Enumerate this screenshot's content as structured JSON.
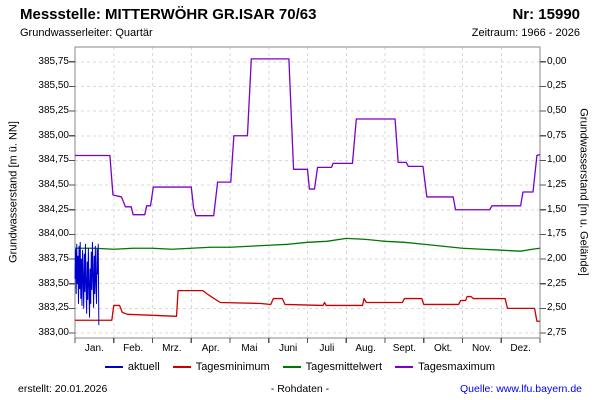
{
  "header": {
    "title": "Messstelle: MITTERWÖHR GR.ISAR 70/63",
    "number": "Nr: 15990",
    "aquifer": "Grundwasserleiter: Quartär",
    "period": "Zeitraum: 1966 - 2026"
  },
  "footer": {
    "created": "erstellt:  20.01.2026",
    "center": "- Rohdaten -",
    "source": "Quelle: www.lfu.bayern.de",
    "source_color": "#0000ee"
  },
  "chart_data": {
    "type": "line",
    "title": "",
    "xlabel": "",
    "ylabel_left": "Grundwasserstand [m ü. NN]",
    "ylabel_right": "Grundwasserstand [m u. Gelände]",
    "x_categories": [
      "Jan.",
      "Feb.",
      "Mrz.",
      "Apr.",
      "Mai",
      "Juni",
      "Juli",
      "Aug.",
      "Sept.",
      "Okt.",
      "Nov.",
      "Dez."
    ],
    "x_unit": "month_of_year",
    "x_range_months": [
      0,
      12
    ],
    "ylim_left": [
      382.95,
      385.9
    ],
    "ytick_values": [
      385.75,
      385.5,
      385.25,
      385.0,
      384.75,
      384.5,
      384.25,
      384.0,
      383.75,
      383.5,
      383.25,
      383.0
    ],
    "ytick_labels_left": [
      "385,75",
      "385,50",
      "385,25",
      "385,00",
      "384,75",
      "384,50",
      "384,25",
      "384,00",
      "383,75",
      "383,50",
      "383,25",
      "383,00"
    ],
    "ytick_labels_right": [
      "0,00",
      "0,25",
      "0,50",
      "0,75",
      "1,00",
      "1,25",
      "1,50",
      "1,75",
      "2,00",
      "2,25",
      "2,50",
      "2,75"
    ],
    "ground_elevation_m_nn": 385.75,
    "right_axis_relation": "right_value = 385.75 - left_value",
    "grid": true,
    "grid_color": "#d9d9d9",
    "axis_color": "#878787",
    "legend_position": "bottom",
    "series": [
      {
        "name": "aktuell",
        "color": "#0000cc",
        "points": [
          [
            0.0,
            383.55
          ],
          [
            0.015,
            383.85
          ],
          [
            0.03,
            383.4
          ],
          [
            0.045,
            383.9
          ],
          [
            0.06,
            383.5
          ],
          [
            0.075,
            383.78
          ],
          [
            0.09,
            383.3
          ],
          [
            0.105,
            383.88
          ],
          [
            0.12,
            383.45
          ],
          [
            0.135,
            383.92
          ],
          [
            0.15,
            383.35
          ],
          [
            0.165,
            383.75
          ],
          [
            0.18,
            383.28
          ],
          [
            0.195,
            383.84
          ],
          [
            0.21,
            383.55
          ],
          [
            0.225,
            383.25
          ],
          [
            0.24,
            383.8
          ],
          [
            0.255,
            383.42
          ],
          [
            0.27,
            383.9
          ],
          [
            0.285,
            383.5
          ],
          [
            0.3,
            383.2
          ],
          [
            0.315,
            383.72
          ],
          [
            0.33,
            383.34
          ],
          [
            0.345,
            383.86
          ],
          [
            0.36,
            383.48
          ],
          [
            0.375,
            383.16
          ],
          [
            0.39,
            383.65
          ],
          [
            0.405,
            383.3
          ],
          [
            0.42,
            383.82
          ],
          [
            0.435,
            383.44
          ],
          [
            0.45,
            383.92
          ],
          [
            0.465,
            383.58
          ],
          [
            0.48,
            383.26
          ],
          [
            0.495,
            383.78
          ],
          [
            0.51,
            383.4
          ],
          [
            0.525,
            383.88
          ],
          [
            0.54,
            383.52
          ],
          [
            0.555,
            383.3
          ],
          [
            0.57,
            383.85
          ],
          [
            0.585,
            383.6
          ],
          [
            0.6,
            383.9
          ],
          [
            0.615,
            383.08
          ]
        ]
      },
      {
        "name": "Tagesminimum",
        "color": "#cc0000",
        "points": [
          [
            0.0,
            383.13
          ],
          [
            0.95,
            383.13
          ],
          [
            1.0,
            383.28
          ],
          [
            1.15,
            383.28
          ],
          [
            1.22,
            383.21
          ],
          [
            1.35,
            383.19
          ],
          [
            2.0,
            383.18
          ],
          [
            2.62,
            383.17
          ],
          [
            2.66,
            383.43
          ],
          [
            3.3,
            383.43
          ],
          [
            3.4,
            383.4
          ],
          [
            3.55,
            383.36
          ],
          [
            3.75,
            383.31
          ],
          [
            4.8,
            383.3
          ],
          [
            5.05,
            383.29
          ],
          [
            5.12,
            383.35
          ],
          [
            5.35,
            383.35
          ],
          [
            5.42,
            383.29
          ],
          [
            6.4,
            383.28
          ],
          [
            6.44,
            383.31
          ],
          [
            6.48,
            383.28
          ],
          [
            7.42,
            383.28
          ],
          [
            7.46,
            383.35
          ],
          [
            7.52,
            383.31
          ],
          [
            8.45,
            383.31
          ],
          [
            8.5,
            383.35
          ],
          [
            8.95,
            383.35
          ],
          [
            9.0,
            383.29
          ],
          [
            9.9,
            383.29
          ],
          [
            9.95,
            383.33
          ],
          [
            10.08,
            383.33
          ],
          [
            10.12,
            383.37
          ],
          [
            10.22,
            383.37
          ],
          [
            10.28,
            383.35
          ],
          [
            11.1,
            383.35
          ],
          [
            11.16,
            383.25
          ],
          [
            11.86,
            383.25
          ],
          [
            11.92,
            383.12
          ],
          [
            12.0,
            383.12
          ]
        ]
      },
      {
        "name": "Tagesmittelwert",
        "color": "#007700",
        "points": [
          [
            0.0,
            383.86
          ],
          [
            0.5,
            383.86
          ],
          [
            1.0,
            383.85
          ],
          [
            1.5,
            383.86
          ],
          [
            2.0,
            383.86
          ],
          [
            2.5,
            383.85
          ],
          [
            3.0,
            383.86
          ],
          [
            3.5,
            383.87
          ],
          [
            4.0,
            383.87
          ],
          [
            4.5,
            383.88
          ],
          [
            5.0,
            383.89
          ],
          [
            5.5,
            383.9
          ],
          [
            6.0,
            383.92
          ],
          [
            6.5,
            383.93
          ],
          [
            7.0,
            383.96
          ],
          [
            7.5,
            383.95
          ],
          [
            8.0,
            383.93
          ],
          [
            8.5,
            383.92
          ],
          [
            9.0,
            383.9
          ],
          [
            9.5,
            383.88
          ],
          [
            10.0,
            383.86
          ],
          [
            10.5,
            383.85
          ],
          [
            11.0,
            383.84
          ],
          [
            11.5,
            383.83
          ],
          [
            11.8,
            383.85
          ],
          [
            12.0,
            383.86
          ]
        ]
      },
      {
        "name": "Tagesmaximum",
        "color": "#7a00cc",
        "points": [
          [
            0.0,
            384.8
          ],
          [
            0.9,
            384.8
          ],
          [
            0.98,
            384.4
          ],
          [
            1.2,
            384.38
          ],
          [
            1.3,
            384.28
          ],
          [
            1.45,
            384.28
          ],
          [
            1.5,
            384.2
          ],
          [
            1.8,
            384.2
          ],
          [
            1.85,
            384.29
          ],
          [
            1.95,
            384.29
          ],
          [
            2.02,
            384.48
          ],
          [
            3.0,
            384.48
          ],
          [
            3.06,
            384.27
          ],
          [
            3.12,
            384.19
          ],
          [
            3.58,
            384.19
          ],
          [
            3.68,
            384.53
          ],
          [
            4.02,
            384.53
          ],
          [
            4.1,
            385.0
          ],
          [
            4.45,
            385.0
          ],
          [
            4.55,
            385.78
          ],
          [
            5.52,
            385.78
          ],
          [
            5.64,
            384.66
          ],
          [
            6.0,
            384.66
          ],
          [
            6.05,
            384.46
          ],
          [
            6.18,
            384.46
          ],
          [
            6.26,
            384.68
          ],
          [
            6.62,
            384.68
          ],
          [
            6.66,
            384.72
          ],
          [
            7.16,
            384.72
          ],
          [
            7.26,
            385.17
          ],
          [
            8.26,
            385.17
          ],
          [
            8.34,
            384.73
          ],
          [
            8.55,
            384.73
          ],
          [
            8.6,
            384.69
          ],
          [
            8.98,
            384.69
          ],
          [
            9.08,
            384.38
          ],
          [
            9.76,
            384.38
          ],
          [
            9.82,
            384.25
          ],
          [
            10.7,
            384.25
          ],
          [
            10.76,
            384.29
          ],
          [
            11.5,
            384.29
          ],
          [
            11.56,
            384.43
          ],
          [
            11.82,
            384.43
          ],
          [
            11.92,
            384.8
          ],
          [
            12.0,
            384.81
          ]
        ]
      }
    ]
  }
}
